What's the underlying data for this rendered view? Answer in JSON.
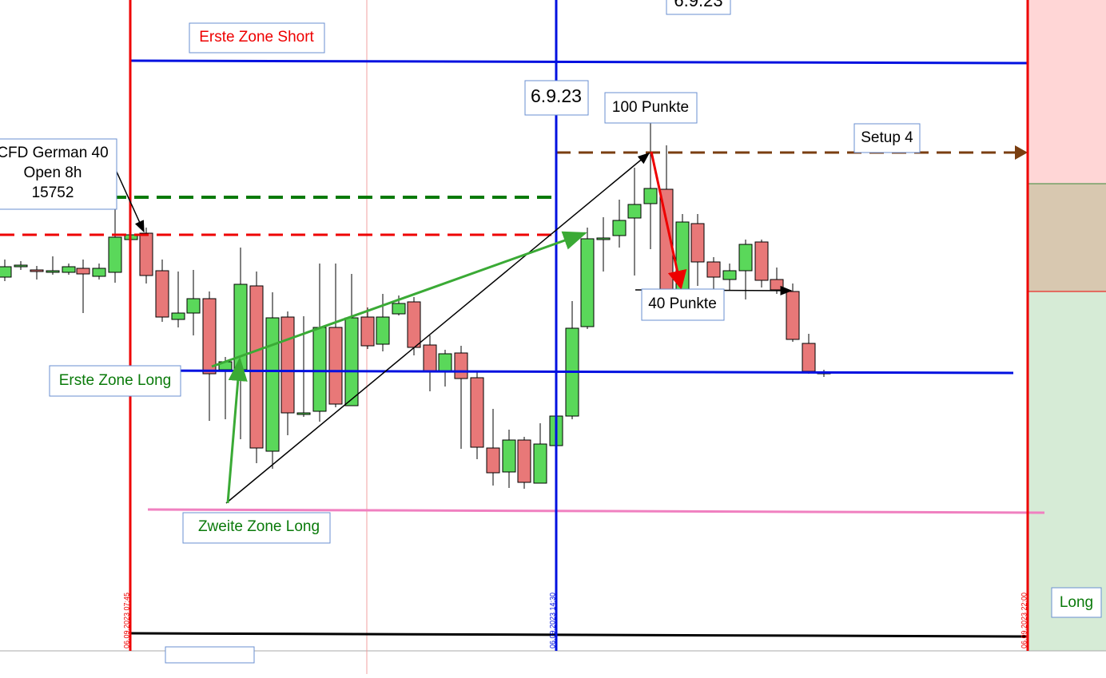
{
  "labels": {
    "erste_zone_short": "Erste Zone Short",
    "date_top": "6.9.23",
    "date_main": "6.9.23",
    "hundred_points": "100 Punkte",
    "setup": "Setup 4",
    "cfd_line1": "CFD German 40",
    "cfd_line2": "Open 8h",
    "cfd_line3": "15752",
    "forty_points": "40 Punkte",
    "erste_zone_long": "Erste Zone Long",
    "zweite_zone_long": "Zweite Zone Long",
    "long": "Long"
  },
  "time_labels": [
    "06.09.2023 07:45",
    "06.09.2023 14:30",
    "06.09.2023 22:00"
  ]
}
